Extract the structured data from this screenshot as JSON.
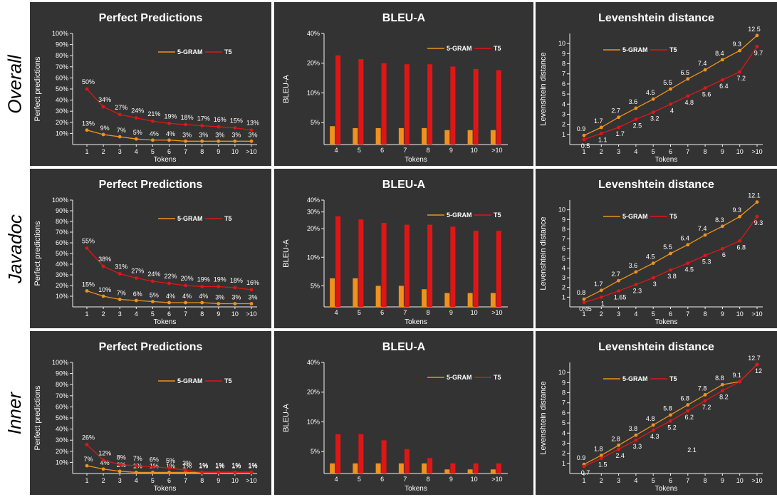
{
  "legend": {
    "ngram": "5-GRAM",
    "t5": "T5"
  },
  "colors": {
    "ngram": "#F0921C",
    "t5": "#E01616",
    "panel_bg": "#333333",
    "axis": "#f0f0f0"
  },
  "rows": [
    {
      "label": "Overall",
      "charts": [
        {
          "type": "line",
          "title": "Perfect Predictions",
          "ylabel": "Perfect predictions",
          "xlabel": "Tokens",
          "categories": [
            "1",
            "2",
            "3",
            "4",
            "5",
            "6",
            "7",
            "8",
            "9",
            "10",
            ">10"
          ],
          "yticks": [
            "10%",
            "20%",
            "30%",
            "40%",
            "50%",
            "60%",
            "70%",
            "80%",
            "90%",
            "100%"
          ],
          "ylim": [
            0,
            100
          ],
          "series": [
            {
              "name": "5-GRAM",
              "values": [
                13,
                9,
                7,
                5,
                4,
                4,
                3,
                3,
                3,
                3,
                3
              ],
              "labels": [
                "13%",
                "9%",
                "7%",
                "5%",
                "4%",
                "4%",
                "3%",
                "3%",
                "3%",
                "3%",
                "3%"
              ]
            },
            {
              "name": "T5",
              "values": [
                50,
                34,
                27,
                24,
                21,
                19,
                18,
                17,
                16,
                15,
                13
              ],
              "labels": [
                "50%",
                "34%",
                "27%",
                "24%",
                "21%",
                "19%",
                "18%",
                "17%",
                "16%",
                "15%",
                "13%"
              ]
            }
          ]
        },
        {
          "type": "bar",
          "title": "BLEU-A",
          "ylabel": "BLEU-A",
          "xlabel": "Tokens",
          "categories": [
            "4",
            "5",
            "6",
            "7",
            "8",
            "9",
            "10",
            ">10"
          ],
          "yticks": [
            "5%",
            "10%",
            "20%",
            "40%"
          ],
          "ylim": [
            3,
            40
          ],
          "series": [
            {
              "name": "5-GRAM",
              "values": [
                4.6,
                4.4,
                4.4,
                4.4,
                4.4,
                4.2,
                4.2,
                4.2
              ]
            },
            {
              "name": "T5",
              "values": [
                24,
                22,
                20,
                19.5,
                19.5,
                18.5,
                17.5,
                17
              ]
            }
          ]
        },
        {
          "type": "line",
          "title": "Levenshtein distance",
          "ylabel": "Levenshtein distance",
          "xlabel": "Tokens",
          "categories": [
            "1",
            "2",
            "3",
            "4",
            "5",
            "6",
            "7",
            "8",
            "9",
            "10",
            ">10"
          ],
          "yticks": [
            "1",
            "2",
            "3",
            "4",
            "5",
            "6",
            "7",
            "8",
            "9",
            "10"
          ],
          "ylim": [
            0,
            11
          ],
          "series": [
            {
              "name": "5-GRAM",
              "values": [
                0.9,
                1.7,
                2.7,
                3.6,
                4.5,
                5.5,
                6.5,
                7.4,
                8.4,
                9.3,
                12.5
              ],
              "labels": [
                "0.9",
                "1.7",
                "2.7",
                "3.6",
                "4.5",
                "5.5",
                "6.5",
                "7.4",
                "8.4",
                "9.3",
                "12.5"
              ]
            },
            {
              "name": "T5",
              "values": [
                0.5,
                1.1,
                1.7,
                2.5,
                3.2,
                4,
                4.8,
                5.6,
                6.4,
                7.2,
                9.7
              ],
              "labels": [
                "0.5",
                "1.1",
                "1.7",
                "2.5",
                "3.2",
                "4",
                "4.8",
                "5.6",
                "6.4",
                "7.2",
                "9.7"
              ]
            }
          ]
        }
      ]
    },
    {
      "label": "Javadoc",
      "charts": [
        {
          "type": "line",
          "title": "Perfect Predictions",
          "ylabel": "Perfect predictions",
          "xlabel": "Tokens",
          "categories": [
            "1",
            "2",
            "3",
            "4",
            "5",
            "6",
            "7",
            "8",
            "9",
            "10",
            ">10"
          ],
          "yticks": [
            "10%",
            "20%",
            "30%",
            "40%",
            "50%",
            "60%",
            "70%",
            "80%",
            "90%",
            "100%"
          ],
          "ylim": [
            0,
            100
          ],
          "series": [
            {
              "name": "5-GRAM",
              "values": [
                15,
                10,
                7,
                6,
                5,
                4,
                4,
                4,
                3,
                3,
                3
              ],
              "labels": [
                "15%",
                "10%",
                "7%",
                "6%",
                "5%",
                "4%",
                "4%",
                "4%",
                "3%",
                "3%",
                "3%"
              ]
            },
            {
              "name": "T5",
              "values": [
                55,
                38,
                31,
                27,
                24,
                22,
                20,
                19,
                19,
                18,
                16
              ],
              "labels": [
                "55%",
                "38%",
                "31%",
                "27%",
                "24%",
                "22%",
                "20%",
                "19%",
                "19%",
                "18%",
                "16%"
              ]
            }
          ]
        },
        {
          "type": "bar",
          "title": "BLEU-A",
          "ylabel": "BLEU-A",
          "xlabel": "Tokens",
          "categories": [
            "4",
            "5",
            "6",
            "7",
            "8",
            "9",
            "10",
            ">10"
          ],
          "yticks": [
            "5%",
            "10%",
            "20%",
            "30%",
            "40%"
          ],
          "ylim": [
            3,
            40
          ],
          "series": [
            {
              "name": "5-GRAM",
              "values": [
                6,
                6,
                5,
                5,
                4.6,
                4.2,
                4.2,
                4.2
              ]
            },
            {
              "name": "T5",
              "values": [
                27,
                25,
                23,
                22,
                22,
                21,
                19,
                19
              ]
            }
          ]
        },
        {
          "type": "line",
          "title": "Levenshtein distance",
          "ylabel": "Levenshtein distance",
          "xlabel": "Tokens",
          "categories": [
            "1",
            "2",
            "3",
            "4",
            "5",
            "6",
            "7",
            "8",
            "9",
            "10",
            ">10"
          ],
          "yticks": [
            "1",
            "2",
            "3",
            "4",
            "5",
            "6",
            "7",
            "8",
            "9",
            "10"
          ],
          "ylim": [
            0,
            11
          ],
          "series": [
            {
              "name": "5-GRAM",
              "values": [
                0.8,
                1.7,
                2.7,
                3.6,
                4.5,
                5.5,
                6.4,
                7.4,
                8.3,
                9.3,
                12.1
              ],
              "labels": [
                "0.8",
                "1.7",
                "2.7",
                "3.6",
                "4.5",
                "5.5",
                "6.4",
                "7.4",
                "8.3",
                "9.3",
                "12.1"
              ]
            },
            {
              "name": "T5",
              "values": [
                0.45,
                1,
                1.65,
                2.3,
                3,
                3.8,
                4.5,
                5.3,
                6,
                6.8,
                9.3
              ],
              "labels": [
                "0.45",
                "1",
                "1.65",
                "2.3",
                "3",
                "3.8",
                "4.5",
                "5.3",
                "6",
                "6.8",
                "9.3"
              ]
            }
          ]
        }
      ]
    },
    {
      "label": "Inner",
      "charts": [
        {
          "type": "line",
          "title": "Perfect Predictions",
          "ylabel": "Perfect predictions",
          "xlabel": "Tokens",
          "categories": [
            "1",
            "2",
            "3",
            "4",
            "5",
            "6",
            "7",
            "8",
            "9",
            "10",
            ">10"
          ],
          "yticks": [
            "10%",
            "20%",
            "30%",
            "40%",
            "50%",
            "60%",
            "70%",
            "80%",
            "90%",
            "100%"
          ],
          "ylim": [
            0,
            100
          ],
          "series": [
            {
              "name": "5-GRAM",
              "values": [
                7,
                4,
                2,
                1,
                1,
                1,
                1,
                1,
                1,
                1,
                1
              ],
              "labels": [
                "7%",
                "4%",
                "2%",
                "1%",
                "1%",
                "1%",
                "1%",
                "1%",
                "1%",
                "1%",
                "1%"
              ]
            },
            {
              "name": "T5",
              "values": [
                26,
                12,
                8,
                7,
                6,
                5,
                3,
                1,
                1,
                1,
                1
              ],
              "labels": [
                "26%",
                "12%",
                "8%",
                "7%",
                "6%",
                "5%",
                "3%",
                "1%",
                "1%",
                "1%",
                "1%"
              ]
            }
          ]
        },
        {
          "type": "bar",
          "title": "BLEU-A",
          "ylabel": "BLEU-A",
          "xlabel": "Tokens",
          "categories": [
            "4",
            "5",
            "6",
            "7",
            "8",
            "9",
            "10",
            ">10"
          ],
          "yticks": [
            "5%",
            "10%",
            "20%",
            "40%"
          ],
          "ylim": [
            3,
            40
          ],
          "series": [
            {
              "name": "5-GRAM",
              "values": [
                3.8,
                3.8,
                3.8,
                3.8,
                3.8,
                3.3,
                3.3,
                3.3
              ]
            },
            {
              "name": "T5",
              "values": [
                7.5,
                7.5,
                6.5,
                5.3,
                4.3,
                3.8,
                3.8,
                3.8
              ]
            }
          ]
        },
        {
          "type": "line",
          "title": "Levenshtein distance",
          "ylabel": "Levenshtein distance",
          "xlabel": "Tokens",
          "categories": [
            "1",
            "2",
            "3",
            "4",
            "5",
            "6",
            "7",
            "8",
            "9",
            "10",
            ">10"
          ],
          "yticks": [
            "1",
            "2",
            "3",
            "4",
            "5",
            "6",
            "7",
            "8",
            "9",
            "10"
          ],
          "ylim": [
            0,
            11
          ],
          "series": [
            {
              "name": "5-GRAM",
              "values": [
                0.9,
                1.8,
                2.8,
                3.8,
                4.8,
                5.8,
                6.8,
                7.8,
                8.8,
                9.1,
                12.7
              ],
              "labels": [
                "0.9",
                "1.8",
                "2.8",
                "3.8",
                "4.8",
                "5.8",
                "6.8",
                "7.8",
                "8.8",
                "9.1",
                "12.7"
              ]
            },
            {
              "name": "T5",
              "values": [
                0.7,
                1.5,
                2.4,
                3.3,
                4.3,
                5.2,
                6.2,
                7.2,
                8.2,
                9.1,
                12
              ],
              "labels": [
                "0.7",
                "1.5",
                "2.4",
                "3.3",
                "4.3",
                "5.2",
                "6.2",
                "7.2",
                "8.2",
                "",
                "12"
              ]
            }
          ]
        }
      ]
    }
  ],
  "stray_labels": [
    {
      "row": 2,
      "col": 2,
      "text": "2.1",
      "value": 2.1,
      "category": "6"
    }
  ]
}
